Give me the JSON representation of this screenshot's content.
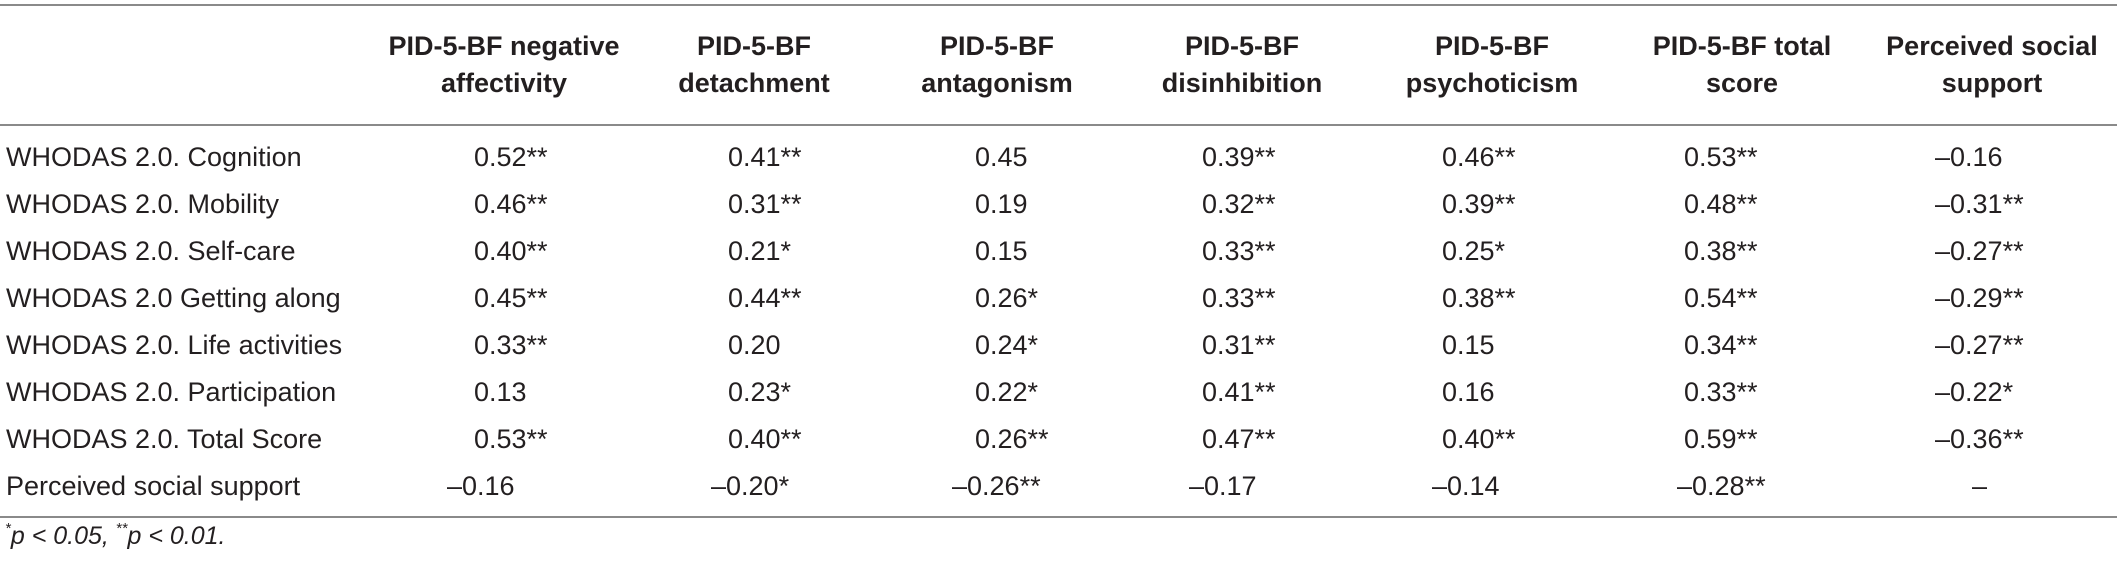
{
  "table": {
    "headers": [
      "",
      "PID-5-BF negative affectivity",
      "PID-5-BF detachment",
      "PID-5-BF antagonism",
      "PID-5-BF disinhibition",
      "PID-5-BF psychoticism",
      "PID-5-BF total score",
      "Perceived social support"
    ],
    "rows": [
      {
        "label": "WHODAS 2.0. Cognition",
        "cells": [
          "0.52**",
          "0.41**",
          "0.45",
          "0.39**",
          "0.46**",
          "0.53**",
          "–0.16"
        ]
      },
      {
        "label": "WHODAS 2.0. Mobility",
        "cells": [
          "0.46**",
          "0.31**",
          "0.19",
          "0.32**",
          "0.39**",
          "0.48**",
          "–0.31**"
        ]
      },
      {
        "label": "WHODAS 2.0. Self-care",
        "cells": [
          "0.40**",
          "0.21*",
          "0.15",
          "0.33**",
          "0.25*",
          "0.38**",
          "–0.27**"
        ]
      },
      {
        "label": "WHODAS 2.0 Getting along",
        "cells": [
          "0.45**",
          "0.44**",
          "0.26*",
          "0.33**",
          "0.38**",
          "0.54**",
          "–0.29**"
        ]
      },
      {
        "label": "WHODAS 2.0. Life activities",
        "cells": [
          "0.33**",
          "0.20",
          "0.24*",
          "0.31**",
          "0.15",
          "0.34**",
          "–0.27**"
        ]
      },
      {
        "label": "WHODAS 2.0. Participation",
        "cells": [
          "0.13",
          "0.23*",
          "0.22*",
          "0.41**",
          "0.16",
          "0.33**",
          "–0.22*"
        ]
      },
      {
        "label": "WHODAS 2.0. Total Score",
        "cells": [
          "0.53**",
          "0.40**",
          "0.26**",
          "0.47**",
          "0.40**",
          "0.59**",
          "–0.36**"
        ]
      },
      {
        "label": "Perceived social support",
        "cells": [
          "–0.16",
          "–0.20*",
          "–0.26**",
          "–0.17",
          "–0.14",
          "–0.28**",
          "–"
        ]
      }
    ]
  },
  "footnote": {
    "mark1": "*",
    "text1": "p < 0.05, ",
    "mark2": "**",
    "text2": "p < 0.01."
  }
}
